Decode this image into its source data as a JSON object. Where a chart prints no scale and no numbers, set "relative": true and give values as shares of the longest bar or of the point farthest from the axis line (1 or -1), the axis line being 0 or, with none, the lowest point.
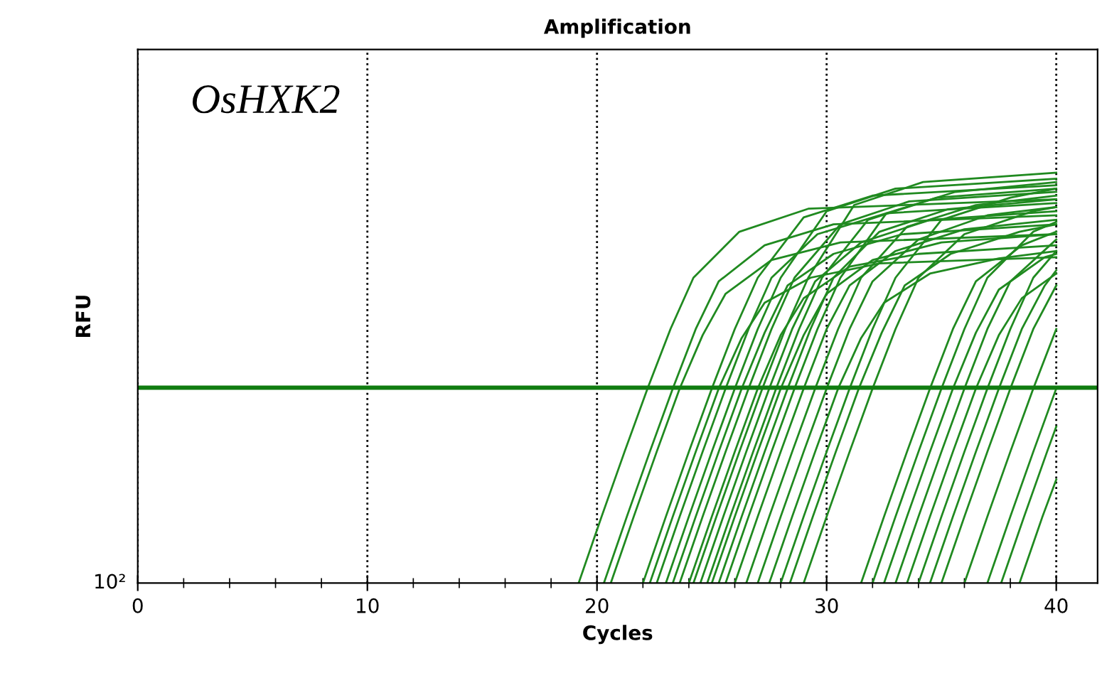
{
  "chart_data": {
    "type": "line",
    "title": "Amplification",
    "xlabel": "Cycles",
    "ylabel": "RFU",
    "annotations": [
      "OsHXK2",
      "10²"
    ],
    "relative": true,
    "grid": "x",
    "line_style": "solid",
    "marker": "none",
    "xlim": [
      0,
      41.8
    ],
    "xticks": [
      0,
      10,
      20,
      30,
      40
    ],
    "ref_lines": [
      {
        "axis": "y",
        "value": 0.476,
        "label": null,
        "color": "#107c10"
      }
    ],
    "series": [
      {
        "color": "#208a20",
        "x": [
          19.2,
          20.2,
          21.2,
          22.2,
          23.2,
          24.2,
          26.2,
          29.2,
          40
        ],
        "values": [
          0,
          0.162,
          0.32,
          0.474,
          0.619,
          0.744,
          0.856,
          0.912,
          0.935
        ]
      },
      {
        "color": "#208a20",
        "x": [
          20.3,
          21.3,
          22.3,
          23.3,
          24.3,
          25.3,
          27.3,
          30.3,
          40
        ],
        "values": [
          0,
          0.162,
          0.32,
          0.474,
          0.619,
          0.735,
          0.823,
          0.874,
          0.896
        ]
      },
      {
        "color": "#208a20",
        "x": [
          20.6,
          21.6,
          22.6,
          23.6,
          24.6,
          25.6,
          27.6,
          30.6,
          40
        ],
        "values": [
          0,
          0.162,
          0.32,
          0.474,
          0.604,
          0.705,
          0.787,
          0.83,
          0.85
        ]
      },
      {
        "color": "#208a20",
        "x": [
          22,
          23,
          24,
          25,
          26,
          27,
          29,
          32,
          40
        ],
        "values": [
          0,
          0.162,
          0.32,
          0.474,
          0.619,
          0.744,
          0.891,
          0.944,
          0.969
        ]
      },
      {
        "color": "#208a20",
        "x": [
          22.3,
          23.3,
          24.3,
          25.3,
          26.3,
          27.3,
          29.3,
          32.3,
          40
        ],
        "values": [
          0,
          0.162,
          0.32,
          0.474,
          0.597,
          0.683,
          0.744,
          0.779,
          0.794
        ]
      },
      {
        "color": "#208a20",
        "x": [
          22.6,
          23.6,
          24.6,
          25.6,
          26.6,
          27.6,
          29.6,
          32.6,
          40
        ],
        "values": [
          0,
          0.162,
          0.32,
          0.474,
          0.619,
          0.744,
          0.85,
          0.901,
          0.926
        ]
      },
      {
        "color": "#208a20",
        "x": [
          23,
          24,
          25,
          26,
          27,
          28,
          30,
          33,
          40
        ],
        "values": [
          0,
          0.162,
          0.32,
          0.474,
          0.619,
          0.744,
          0.906,
          0.961,
          0.985
        ]
      },
      {
        "color": "#208a20",
        "x": [
          23.3,
          24.3,
          25.3,
          26.3,
          27.3,
          28.3,
          30.3,
          33.3,
          40
        ],
        "values": [
          0,
          0.162,
          0.32,
          0.474,
          0.61,
          0.725,
          0.802,
          0.85,
          0.874
        ]
      },
      {
        "color": "#208a20",
        "x": [
          23.6,
          24.6,
          25.6,
          26.6,
          27.6,
          28.6,
          30.6,
          33.6,
          40
        ],
        "values": [
          0,
          0.162,
          0.32,
          0.474,
          0.619,
          0.744,
          0.874,
          0.93,
          0.953
        ]
      },
      {
        "color": "#208a20",
        "x": [
          24,
          25,
          26,
          27,
          28,
          29,
          31,
          34,
          40
        ],
        "values": [
          0,
          0.162,
          0.32,
          0.474,
          0.604,
          0.694,
          0.771,
          0.802,
          0.823
        ]
      },
      {
        "color": "#208a20",
        "x": [
          24.2,
          25.2,
          26.2,
          27.2,
          28.2,
          29.2,
          31.2,
          34.2,
          40
        ],
        "values": [
          0,
          0.162,
          0.32,
          0.474,
          0.619,
          0.744,
          0.921,
          0.977,
          1
        ]
      },
      {
        "color": "#208a20",
        "x": [
          24.5,
          25.5,
          26.5,
          27.5,
          28.5,
          29.5,
          31.5,
          34.5,
          40
        ],
        "values": [
          0,
          0.162,
          0.32,
          0.474,
          0.619,
          0.735,
          0.83,
          0.885,
          0.906
        ]
      },
      {
        "color": "#208a20",
        "x": [
          24.8,
          25.8,
          26.8,
          27.8,
          28.8,
          29.8,
          31.8,
          34.8,
          40
        ],
        "values": [
          0,
          0.162,
          0.32,
          0.474,
          0.619,
          0.744,
          0.885,
          0.939,
          0.961
        ]
      },
      {
        "color": "#208a20",
        "x": [
          25,
          26,
          27,
          28,
          29,
          30,
          32,
          35,
          40
        ],
        "values": [
          0,
          0.162,
          0.32,
          0.474,
          0.604,
          0.705,
          0.787,
          0.83,
          0.85
        ]
      },
      {
        "color": "#208a20",
        "x": [
          25.3,
          26.3,
          27.3,
          28.3,
          29.3,
          30.3,
          32.3,
          35.3,
          40
        ],
        "values": [
          0,
          0.162,
          0.32,
          0.474,
          0.619,
          0.744,
          0.856,
          0.911,
          0.935
        ]
      },
      {
        "color": "#208a20",
        "x": [
          25.6,
          26.6,
          27.6,
          28.6,
          29.6,
          30.6,
          32.6,
          35.6,
          40
        ],
        "values": [
          0,
          0.162,
          0.32,
          0.474,
          0.619,
          0.744,
          0.901,
          0.953,
          0.977
        ]
      },
      {
        "color": "#208a20",
        "x": [
          26,
          27,
          28,
          29,
          30,
          31,
          33,
          36,
          40
        ],
        "values": [
          0,
          0.162,
          0.32,
          0.474,
          0.619,
          0.725,
          0.809,
          0.862,
          0.885
        ]
      },
      {
        "color": "#208a20",
        "x": [
          26.5,
          27.5,
          28.5,
          29.5,
          30.5,
          31.5,
          33.5,
          36.5,
          40
        ],
        "values": [
          0,
          0.162,
          0.32,
          0.474,
          0.619,
          0.744,
          0.868,
          0.921,
          0.944
        ]
      },
      {
        "color": "#208a20",
        "x": [
          27,
          28,
          29,
          30,
          31,
          32,
          34,
          37,
          40
        ],
        "values": [
          0,
          0.162,
          0.32,
          0.474,
          0.619,
          0.735,
          0.837,
          0.896,
          0.916
        ]
      },
      {
        "color": "#208a20",
        "x": [
          27.5,
          28.5,
          29.5,
          30.5,
          31.5,
          32.5,
          34.5,
          37.5,
          40
        ],
        "values": [
          0,
          0.162,
          0.32,
          0.474,
          0.597,
          0.683,
          0.754,
          0.791,
          0.809
        ]
      },
      {
        "color": "#208a20",
        "x": [
          28,
          29,
          30,
          31,
          32,
          33,
          35,
          38,
          40
        ],
        "values": [
          0,
          0.162,
          0.32,
          0.474,
          0.619,
          0.744,
          0.885,
          0.939,
          0.961
        ]
      },
      {
        "color": "#208a20",
        "x": [
          28.4,
          29.4,
          30.4,
          31.4,
          32.4,
          33.4,
          35.4,
          38.4,
          40
        ],
        "values": [
          0,
          0.162,
          0.32,
          0.474,
          0.61,
          0.725,
          0.802,
          0.856,
          0.874
        ]
      },
      {
        "color": "#208a20",
        "x": [
          29,
          30,
          31,
          32,
          33,
          34,
          36,
          39,
          40
        ],
        "values": [
          0,
          0.162,
          0.32,
          0.474,
          0.619,
          0.744,
          0.85,
          0.906,
          0.916
        ]
      },
      {
        "color": "#208a20",
        "x": [
          31.5,
          32.5,
          33.5,
          34.5,
          35.5,
          36.5,
          38.5,
          40
        ],
        "values": [
          0,
          0.162,
          0.32,
          0.474,
          0.619,
          0.735,
          0.823,
          0.856
        ]
      },
      {
        "color": "#208a20",
        "x": [
          32,
          33,
          34,
          35,
          36,
          37,
          39,
          40
        ],
        "values": [
          0,
          0.162,
          0.32,
          0.474,
          0.619,
          0.744,
          0.856,
          0.88
        ]
      },
      {
        "color": "#208a20",
        "x": [
          32.5,
          33.5,
          34.5,
          35.5,
          36.5,
          37.5,
          39.5,
          40
        ],
        "values": [
          0,
          0.162,
          0.32,
          0.474,
          0.61,
          0.715,
          0.794,
          0.802
        ]
      },
      {
        "color": "#208a20",
        "x": [
          33,
          34,
          35,
          36,
          37,
          38,
          40
        ],
        "values": [
          0,
          0.162,
          0.32,
          0.474,
          0.619,
          0.735,
          0.837
        ]
      },
      {
        "color": "#208a20",
        "x": [
          33.5,
          34.5,
          35.5,
          36.5,
          37.5,
          38.5,
          40
        ],
        "values": [
          0,
          0.162,
          0.32,
          0.474,
          0.604,
          0.694,
          0.754
        ]
      },
      {
        "color": "#208a20",
        "x": [
          34,
          35,
          36,
          37,
          38,
          39,
          40
        ],
        "values": [
          0,
          0.162,
          0.32,
          0.474,
          0.619,
          0.744,
          0.809
        ]
      },
      {
        "color": "#208a20",
        "x": [
          34.5,
          35.5,
          36.5,
          37.5,
          38.5,
          39.5,
          40
        ],
        "values": [
          0,
          0.162,
          0.32,
          0.474,
          0.619,
          0.725,
          0.762
        ]
      },
      {
        "color": "#208a20",
        "x": [
          35,
          36,
          37,
          38,
          39,
          40
        ],
        "values": [
          0,
          0.162,
          0.32,
          0.474,
          0.619,
          0.725
        ]
      },
      {
        "color": "#208a20",
        "x": [
          36,
          37,
          38,
          39,
          40
        ],
        "values": [
          0,
          0.162,
          0.32,
          0.474,
          0.619
        ]
      },
      {
        "color": "#208a20",
        "x": [
          37,
          38,
          39,
          40
        ],
        "values": [
          0,
          0.162,
          0.32,
          0.474
        ]
      },
      {
        "color": "#208a20",
        "x": [
          37.6,
          38.6,
          39.6,
          40
        ],
        "values": [
          0,
          0.162,
          0.32,
          0.381
        ]
      },
      {
        "color": "#208a20",
        "x": [
          38.4,
          39.4,
          40
        ],
        "values": [
          0,
          0.162,
          0.252
        ]
      }
    ]
  }
}
